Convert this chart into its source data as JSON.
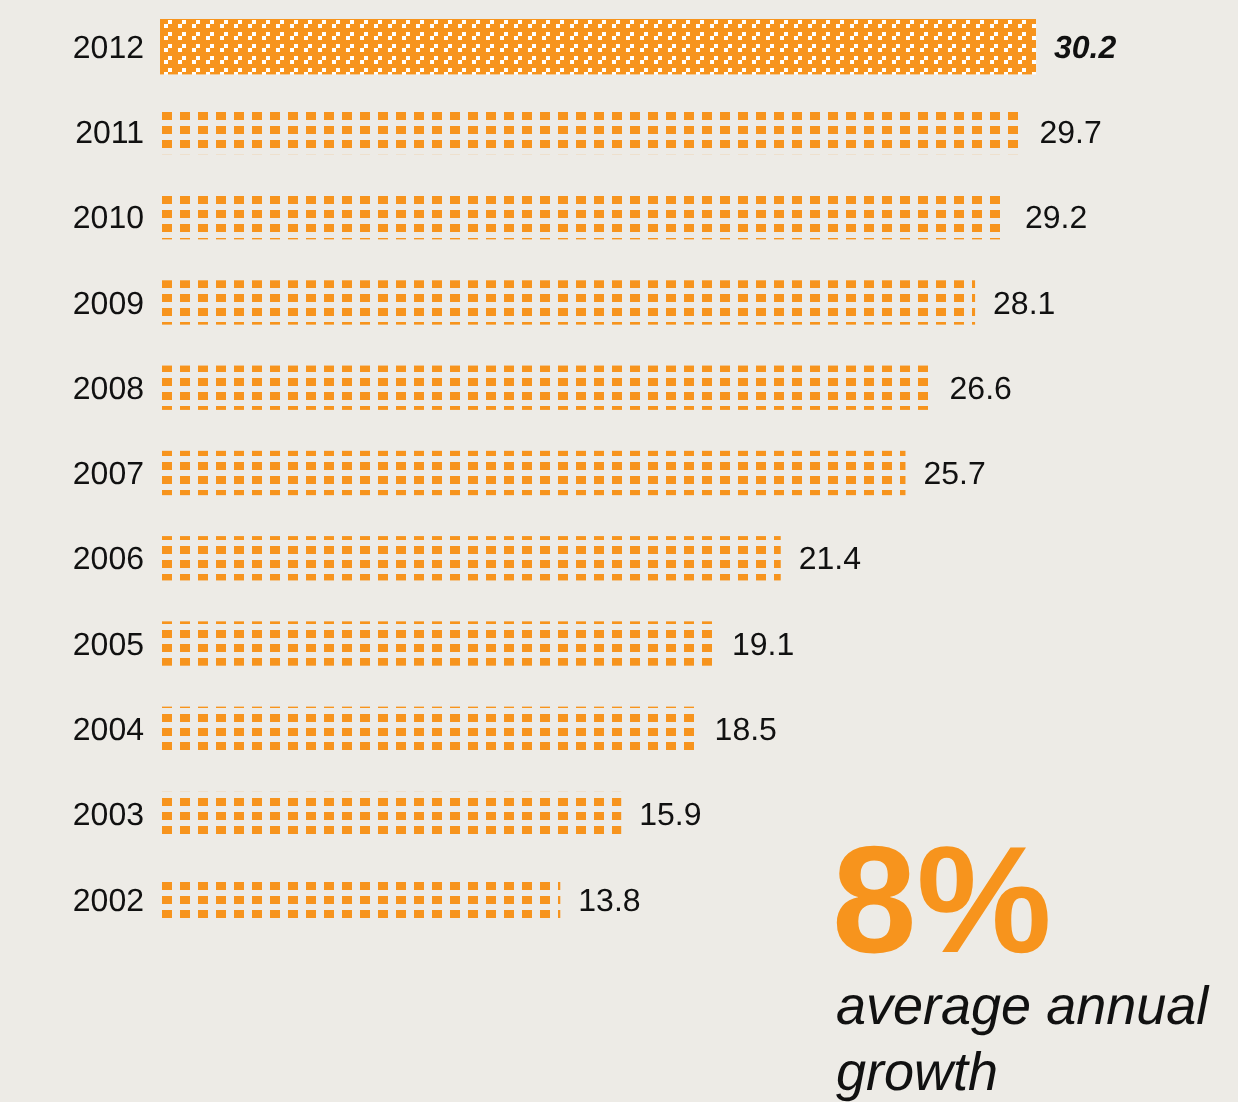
{
  "chart_data": {
    "type": "bar",
    "orientation": "horizontal",
    "categories": [
      "2012",
      "2011",
      "2010",
      "2009",
      "2008",
      "2007",
      "2006",
      "2005",
      "2004",
      "2003",
      "2002"
    ],
    "values": [
      30.2,
      29.7,
      29.2,
      28.1,
      26.6,
      25.7,
      21.4,
      19.1,
      18.5,
      15.9,
      13.8
    ],
    "color": "#f7941d",
    "data_labels": true,
    "annotations": [
      "8%",
      "average annual growth"
    ]
  }
}
